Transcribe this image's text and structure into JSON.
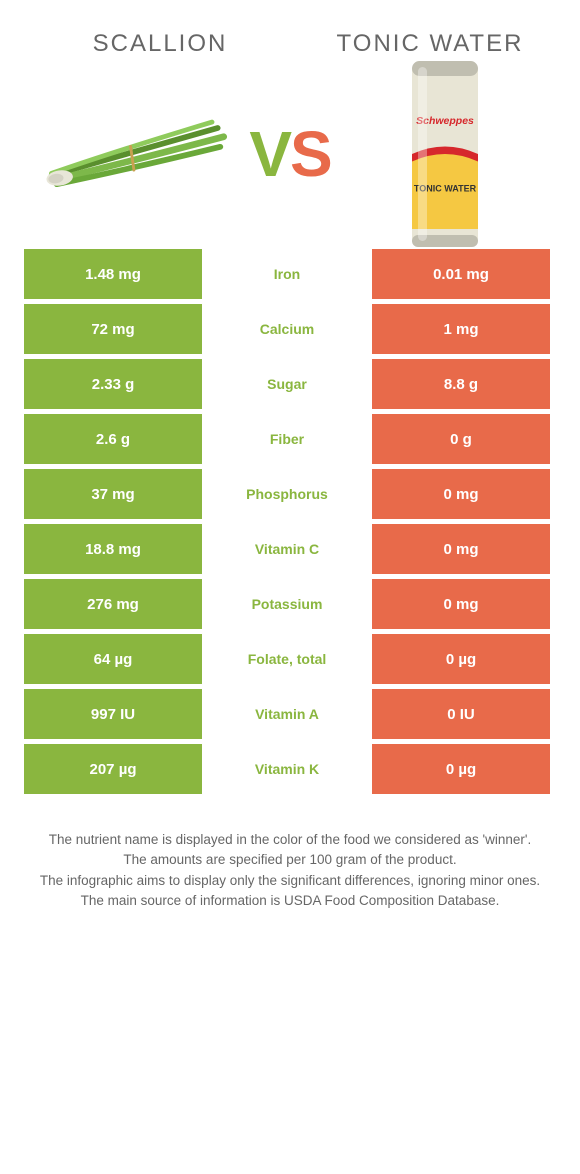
{
  "colors": {
    "green": "#8ab63f",
    "orange": "#e86a4a",
    "white": "#ffffff",
    "text": "#666666"
  },
  "header": {
    "left_title": "Scallion",
    "right_title": "Tonic water",
    "vs": "VS"
  },
  "table": {
    "rows": [
      {
        "left": "1.48 mg",
        "label": "Iron",
        "right": "0.01 mg",
        "winner": "left"
      },
      {
        "left": "72 mg",
        "label": "Calcium",
        "right": "1 mg",
        "winner": "left"
      },
      {
        "left": "2.33 g",
        "label": "Sugar",
        "right": "8.8 g",
        "winner": "left"
      },
      {
        "left": "2.6 g",
        "label": "Fiber",
        "right": "0 g",
        "winner": "left"
      },
      {
        "left": "37 mg",
        "label": "Phosphorus",
        "right": "0 mg",
        "winner": "left"
      },
      {
        "left": "18.8 mg",
        "label": "Vitamin C",
        "right": "0 mg",
        "winner": "left"
      },
      {
        "left": "276 mg",
        "label": "Potassium",
        "right": "0 mg",
        "winner": "left"
      },
      {
        "left": "64 µg",
        "label": "Folate, total",
        "right": "0 µg",
        "winner": "left"
      },
      {
        "left": "997 IU",
        "label": "Vitamin A",
        "right": "0 IU",
        "winner": "left"
      },
      {
        "left": "207 µg",
        "label": "Vitamin K",
        "right": "0 µg",
        "winner": "left"
      }
    ]
  },
  "footer": {
    "line1": "The nutrient name is displayed in the color of the food we considered as 'winner'.",
    "line2": "The amounts are specified per 100 gram of the product.",
    "line3": "The infographic aims to display only the significant differences, ignoring minor ones.",
    "line4": "The main source of information is USDA Food Composition Database."
  }
}
